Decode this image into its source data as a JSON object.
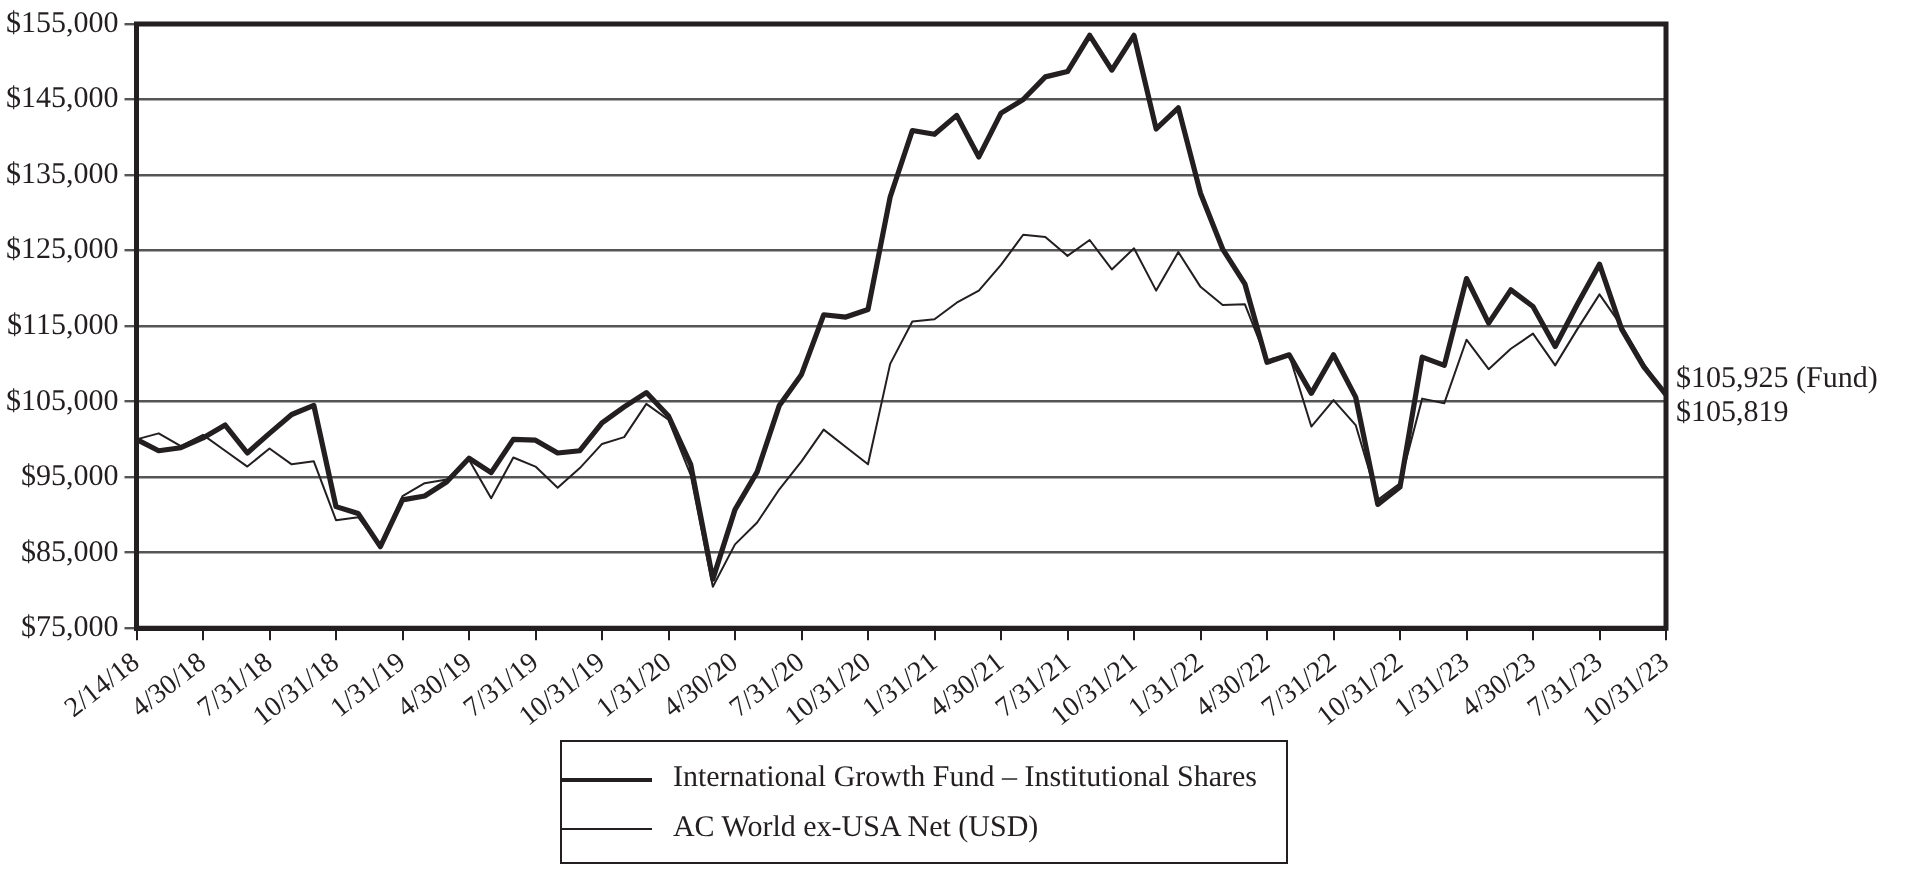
{
  "chart_data": {
    "type": "line",
    "categories": [
      "2/14/18",
      null,
      null,
      "4/30/18",
      null,
      null,
      "7/31/18",
      null,
      null,
      "10/31/18",
      null,
      null,
      "1/31/19",
      null,
      null,
      "4/30/19",
      null,
      null,
      "7/31/19",
      null,
      null,
      "10/31/19",
      null,
      null,
      "1/31/20",
      null,
      null,
      "4/30/20",
      null,
      null,
      "7/31/20",
      null,
      null,
      "10/31/20",
      null,
      null,
      "1/31/21",
      null,
      null,
      "4/30/21",
      null,
      null,
      "7/31/21",
      null,
      null,
      "10/31/21",
      null,
      null,
      "1/31/22",
      null,
      null,
      "4/30/22",
      null,
      null,
      "7/31/22",
      null,
      null,
      "10/31/22",
      null,
      null,
      "1/31/23",
      null,
      null,
      "4/30/23",
      null,
      null,
      "7/31/23",
      null,
      null,
      "10/31/23"
    ],
    "series": [
      {
        "name": "International Growth Fund – Institutional Shares",
        "color": "#231f20",
        "values": [
          100000,
          98500,
          98900,
          100200,
          101900,
          98200,
          100800,
          103300,
          104500,
          91100,
          90200,
          85800,
          92000,
          92500,
          94400,
          97500,
          95600,
          100000,
          99900,
          98200,
          98500,
          102200,
          104300,
          106200,
          103100,
          96700,
          81500,
          90700,
          95700,
          104500,
          108600,
          116500,
          116200,
          117200,
          132100,
          140900,
          140400,
          142900,
          137400,
          143200,
          145000,
          148000,
          148700,
          153500,
          148900,
          153500,
          141100,
          143900,
          132600,
          125200,
          120600,
          110200,
          111200,
          106100,
          111200,
          105600,
          91400,
          93700,
          110900,
          109800,
          121300,
          115400,
          119800,
          117600,
          112300,
          117900,
          123200,
          114600,
          109600,
          105925
        ]
      },
      {
        "name": "AC World ex-USA Net (USD)",
        "color": "#231f20",
        "values": [
          100000,
          100800,
          99100,
          100600,
          98500,
          96400,
          98800,
          96700,
          97100,
          89300,
          89700,
          85800,
          92500,
          94200,
          94700,
          97300,
          92200,
          97600,
          96400,
          93600,
          96200,
          99400,
          100300,
          104700,
          102600,
          95300,
          80500,
          86100,
          89000,
          93400,
          97100,
          101300,
          99000,
          96700,
          110000,
          115600,
          115900,
          118100,
          119700,
          123100,
          127100,
          126800,
          124300,
          126400,
          122500,
          125300,
          119700,
          124800,
          120200,
          117800,
          117900,
          110500,
          111200,
          101700,
          105200,
          101900,
          92000,
          94200,
          105400,
          104800,
          113200,
          109300,
          112000,
          114000,
          109800,
          114600,
          119200,
          115000,
          110000,
          105819
        ]
      }
    ],
    "ylim": [
      75000,
      155000
    ],
    "yticks": [
      {
        "value": 75000,
        "label": "$75,000"
      },
      {
        "value": 85000,
        "label": "$85,000"
      },
      {
        "value": 95000,
        "label": "$95,000"
      },
      {
        "value": 105000,
        "label": "$105,000"
      },
      {
        "value": 115000,
        "label": "$115,000"
      },
      {
        "value": 125000,
        "label": "$125,000"
      },
      {
        "value": 135000,
        "label": "$135,000"
      },
      {
        "value": 145000,
        "label": "$145,000"
      },
      {
        "value": 155000,
        "label": "$155,000"
      }
    ],
    "grid": "y",
    "legend": "bottom",
    "marker": "none",
    "line_style": "solid",
    "annotations": [
      "$105,925 (Fund)",
      "$105,819"
    ]
  }
}
